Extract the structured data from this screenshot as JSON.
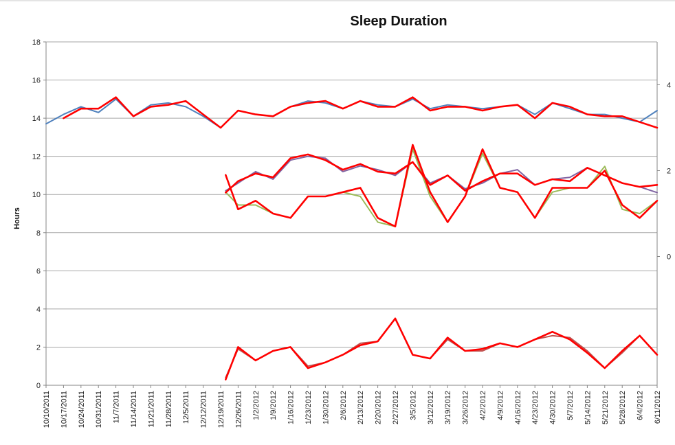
{
  "chart_data": {
    "type": "line",
    "title": "Sleep Duration",
    "ylabel": "Hours",
    "xlabel": "",
    "ylim": [
      0,
      18
    ],
    "yticks": [
      0,
      2,
      4,
      6,
      8,
      10,
      12,
      14,
      16,
      18
    ],
    "secondary_ylim": [
      -3,
      5
    ],
    "secondary_yticks": [
      0,
      2,
      4
    ],
    "grid": "horizontal",
    "legend": "none",
    "x_range": [
      "2011-10-10",
      "2012-06-11"
    ],
    "x_ticks": [
      "10/10/2011",
      "10/17/2011",
      "10/24/2011",
      "10/31/2011",
      "11/7/2011",
      "11/14/2011",
      "11/21/2011",
      "11/28/2011",
      "12/5/2011",
      "12/12/2011",
      "12/19/2011",
      "12/26/2011",
      "1/2/2012",
      "1/9/2012",
      "1/16/2012",
      "1/23/2012",
      "1/30/2012",
      "2/6/2012",
      "2/13/2012",
      "2/20/2012",
      "2/27/2012",
      "3/5/2012",
      "3/12/2012",
      "3/19/2012",
      "3/26/2012",
      "4/2/2012",
      "4/9/2012",
      "4/16/2012",
      "4/23/2012",
      "4/30/2012",
      "5/7/2012",
      "5/14/2012",
      "5/21/2012",
      "5/28/2012",
      "6/4/2012",
      "6/11/2012"
    ],
    "colors": {
      "total": "#4f81bd",
      "night": "#8064a2",
      "daytime": "#9bbb59",
      "awake": "#c0504d",
      "average": "#ff0000",
      "grid": "#a6a6a6",
      "axis": "#868686"
    },
    "series": [
      {
        "key": "total",
        "axis": "primary",
        "x": [
          "2011-10-10",
          "2011-10-17",
          "2011-10-24",
          "2011-10-31",
          "2011-11-07",
          "2011-11-14",
          "2011-11-21",
          "2011-11-28",
          "2011-12-05",
          "2011-12-12",
          "2011-12-19",
          "2011-12-26",
          "2012-01-02",
          "2012-01-09",
          "2012-01-16",
          "2012-01-23",
          "2012-01-30",
          "2012-02-06",
          "2012-02-13",
          "2012-02-20",
          "2012-02-27",
          "2012-03-05",
          "2012-03-12",
          "2012-03-19",
          "2012-03-26",
          "2012-04-02",
          "2012-04-09",
          "2012-04-16",
          "2012-04-23",
          "2012-04-30",
          "2012-05-07",
          "2012-05-14",
          "2012-05-21",
          "2012-05-28",
          "2012-06-04",
          "2012-06-11"
        ],
        "y": [
          13.7,
          14.2,
          14.6,
          14.3,
          15.0,
          14.1,
          14.7,
          14.8,
          14.6,
          14.1,
          13.5,
          14.4,
          14.2,
          14.1,
          14.6,
          14.9,
          14.8,
          14.5,
          14.9,
          14.7,
          14.6,
          15.0,
          14.5,
          14.7,
          14.6,
          14.5,
          14.6,
          14.7,
          14.2,
          14.8,
          14.5,
          14.2,
          14.2,
          14.0,
          13.8,
          14.4
        ]
      },
      {
        "key": "total_avg",
        "axis": "primary",
        "x": [
          "2011-10-17",
          "2011-10-24",
          "2011-10-31",
          "2011-11-07",
          "2011-11-14",
          "2011-11-21",
          "2011-11-28",
          "2011-12-05",
          "2011-12-12",
          "2011-12-19",
          "2011-12-26",
          "2012-01-02",
          "2012-01-09",
          "2012-01-16",
          "2012-01-23",
          "2012-01-30",
          "2012-02-06",
          "2012-02-13",
          "2012-02-20",
          "2012-02-27",
          "2012-03-05",
          "2012-03-12",
          "2012-03-19",
          "2012-03-26",
          "2012-04-02",
          "2012-04-09",
          "2012-04-16",
          "2012-04-23",
          "2012-04-30",
          "2012-05-07",
          "2012-05-14",
          "2012-05-21",
          "2012-05-28",
          "2012-06-04",
          "2012-06-11"
        ],
        "y": [
          14.0,
          14.5,
          14.5,
          15.1,
          14.1,
          14.6,
          14.7,
          14.9,
          14.2,
          13.5,
          14.4,
          14.2,
          14.1,
          14.6,
          14.8,
          14.9,
          14.5,
          14.9,
          14.6,
          14.6,
          15.1,
          14.4,
          14.6,
          14.6,
          14.4,
          14.6,
          14.7,
          14.0,
          14.8,
          14.6,
          14.2,
          14.1,
          14.1,
          13.8,
          13.5
        ]
      },
      {
        "key": "night",
        "axis": "primary",
        "x": [
          "2011-12-21",
          "2011-12-26",
          "2012-01-02",
          "2012-01-09",
          "2012-01-16",
          "2012-01-23",
          "2012-01-30",
          "2012-02-06",
          "2012-02-13",
          "2012-02-20",
          "2012-02-27",
          "2012-03-05",
          "2012-03-12",
          "2012-03-19",
          "2012-03-26",
          "2012-04-02",
          "2012-04-09",
          "2012-04-16",
          "2012-04-23",
          "2012-04-30",
          "2012-05-07",
          "2012-05-14",
          "2012-05-21",
          "2012-05-28",
          "2012-06-04",
          "2012-06-11"
        ],
        "y": [
          10.2,
          10.6,
          11.2,
          10.8,
          11.8,
          12.0,
          11.9,
          11.2,
          11.5,
          11.3,
          11.0,
          11.7,
          10.6,
          11.0,
          10.3,
          10.6,
          11.1,
          11.3,
          10.5,
          10.8,
          10.9,
          11.4,
          11.0,
          10.6,
          10.4,
          10.1
        ]
      },
      {
        "key": "night_avg",
        "axis": "primary",
        "x": [
          "2011-12-21",
          "2011-12-26",
          "2012-01-02",
          "2012-01-09",
          "2012-01-16",
          "2012-01-23",
          "2012-01-30",
          "2012-02-06",
          "2012-02-13",
          "2012-02-20",
          "2012-02-27",
          "2012-03-05",
          "2012-03-12",
          "2012-03-19",
          "2012-03-26",
          "2012-04-02",
          "2012-04-09",
          "2012-04-16",
          "2012-04-23",
          "2012-04-30",
          "2012-05-07",
          "2012-05-14",
          "2012-05-21",
          "2012-05-28",
          "2012-06-04",
          "2012-06-11"
        ],
        "y": [
          10.1,
          10.7,
          11.1,
          10.9,
          11.9,
          12.1,
          11.8,
          11.3,
          11.6,
          11.2,
          11.1,
          11.7,
          10.5,
          11.0,
          10.2,
          10.7,
          11.1,
          11.1,
          10.5,
          10.8,
          10.7,
          11.4,
          11.0,
          10.6,
          10.4,
          10.5
        ]
      },
      {
        "key": "daytime",
        "axis": "secondary",
        "x": [
          "2011-12-21",
          "2011-12-26",
          "2012-01-02",
          "2012-01-09",
          "2012-01-16",
          "2012-01-23",
          "2012-01-30",
          "2012-02-06",
          "2012-02-13",
          "2012-02-20",
          "2012-02-27",
          "2012-03-05",
          "2012-03-12",
          "2012-03-19",
          "2012-03-26",
          "2012-04-02",
          "2012-04-09",
          "2012-04-16",
          "2012-04-23",
          "2012-04-30",
          "2012-05-07",
          "2012-05-14",
          "2012-05-21",
          "2012-05-28",
          "2012-06-04",
          "2012-06-11"
        ],
        "y": [
          1.5,
          1.2,
          1.2,
          1.0,
          0.9,
          1.4,
          1.4,
          1.5,
          1.4,
          0.8,
          0.7,
          2.5,
          1.4,
          0.8,
          1.4,
          2.4,
          1.6,
          1.5,
          0.9,
          1.5,
          1.6,
          1.6,
          2.1,
          1.1,
          1.0,
          1.3
        ]
      },
      {
        "key": "daytime_avg",
        "axis": "secondary",
        "x": [
          "2011-12-21",
          "2011-12-26",
          "2012-01-02",
          "2012-01-09",
          "2012-01-16",
          "2012-01-23",
          "2012-01-30",
          "2012-02-06",
          "2012-02-13",
          "2012-02-20",
          "2012-02-27",
          "2012-03-05",
          "2012-03-12",
          "2012-03-19",
          "2012-03-26",
          "2012-04-02",
          "2012-04-09",
          "2012-04-16",
          "2012-04-23",
          "2012-04-30",
          "2012-05-07",
          "2012-05-14",
          "2012-05-21",
          "2012-05-28",
          "2012-06-04",
          "2012-06-11"
        ],
        "y": [
          1.9,
          1.1,
          1.3,
          1.0,
          0.9,
          1.4,
          1.4,
          1.5,
          1.6,
          0.9,
          0.7,
          2.6,
          1.5,
          0.8,
          1.4,
          2.5,
          1.6,
          1.5,
          0.9,
          1.6,
          1.6,
          1.6,
          2.0,
          1.2,
          0.9,
          1.3
        ]
      },
      {
        "key": "awake",
        "axis": "primary",
        "x": [
          "2011-12-21",
          "2011-12-26",
          "2012-01-02",
          "2012-01-09",
          "2012-01-16",
          "2012-01-23",
          "2012-01-30",
          "2012-02-06",
          "2012-02-13",
          "2012-02-20",
          "2012-02-27",
          "2012-03-05",
          "2012-03-12",
          "2012-03-19",
          "2012-03-26",
          "2012-04-02",
          "2012-04-09",
          "2012-04-16",
          "2012-04-23",
          "2012-04-30",
          "2012-05-07",
          "2012-05-14",
          "2012-05-21",
          "2012-05-28",
          "2012-06-04",
          "2012-06-11"
        ],
        "y": [
          0.4,
          1.9,
          1.3,
          1.8,
          2.0,
          1.0,
          1.2,
          1.6,
          2.2,
          2.3,
          3.5,
          1.6,
          1.4,
          2.4,
          1.8,
          1.8,
          2.2,
          2.0,
          2.4,
          2.6,
          2.5,
          1.8,
          0.9,
          1.7,
          2.6,
          1.6
        ]
      },
      {
        "key": "awake_avg",
        "axis": "primary",
        "x": [
          "2011-12-21",
          "2011-12-26",
          "2012-01-02",
          "2012-01-09",
          "2012-01-16",
          "2012-01-23",
          "2012-01-30",
          "2012-02-06",
          "2012-02-13",
          "2012-02-20",
          "2012-02-27",
          "2012-03-05",
          "2012-03-12",
          "2012-03-19",
          "2012-03-26",
          "2012-04-02",
          "2012-04-09",
          "2012-04-16",
          "2012-04-23",
          "2012-04-30",
          "2012-05-07",
          "2012-05-14",
          "2012-05-21",
          "2012-05-28",
          "2012-06-04",
          "2012-06-11"
        ],
        "y": [
          0.3,
          2.0,
          1.3,
          1.8,
          2.0,
          0.9,
          1.2,
          1.6,
          2.1,
          2.3,
          3.5,
          1.6,
          1.4,
          2.5,
          1.8,
          1.9,
          2.2,
          2.0,
          2.4,
          2.8,
          2.4,
          1.7,
          0.9,
          1.8,
          2.6,
          1.6
        ]
      }
    ]
  }
}
